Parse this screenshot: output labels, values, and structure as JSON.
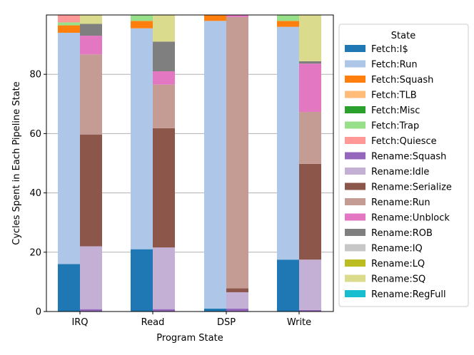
{
  "chart_data": {
    "type": "bar",
    "stacked": true,
    "grouping": "two stacked bars per category (Fetch stack left, Rename stack right)",
    "title": "",
    "xlabel": "Program State",
    "ylabel": "Cycles Spent in Each Pipeline State",
    "categories": [
      "IRQ",
      "Read",
      "DSP",
      "Write"
    ],
    "ylim": [
      0,
      100
    ],
    "yticks": [
      0,
      20,
      40,
      60,
      80
    ],
    "grid": "horizontal",
    "legend": {
      "title": "State",
      "placement": "right"
    },
    "series": [
      {
        "name": "Fetch:I$",
        "color": "#1f77b4",
        "group": "fetch",
        "values": [
          16.0,
          21.0,
          1.0,
          17.5
        ]
      },
      {
        "name": "Fetch:Run",
        "color": "#aec7e8",
        "group": "fetch",
        "values": [
          78.0,
          74.5,
          97.0,
          78.5
        ]
      },
      {
        "name": "Fetch:Squash",
        "color": "#ff7f0e",
        "group": "fetch",
        "values": [
          2.5,
          2.5,
          2.0,
          2.0
        ]
      },
      {
        "name": "Fetch:TLB",
        "color": "#ffbb78",
        "group": "fetch",
        "values": [
          0.0,
          0.0,
          0.0,
          0.0
        ]
      },
      {
        "name": "Fetch:Misc",
        "color": "#2ca02c",
        "group": "fetch",
        "values": [
          0.0,
          0.0,
          0.0,
          0.0
        ]
      },
      {
        "name": "Fetch:Trap",
        "color": "#98df8a",
        "group": "fetch",
        "values": [
          1.0,
          2.0,
          0.0,
          2.0
        ]
      },
      {
        "name": "Fetch:Quiesce",
        "color": "#ff9896",
        "group": "fetch",
        "values": [
          2.5,
          0.0,
          0.0,
          0.0
        ]
      },
      {
        "name": "Rename:Squash",
        "color": "#9467bd",
        "group": "rename",
        "values": [
          0.8,
          0.8,
          1.0,
          0.5
        ]
      },
      {
        "name": "Rename:Idle",
        "color": "#c5b0d5",
        "group": "rename",
        "values": [
          21.2,
          20.8,
          5.5,
          17.0
        ]
      },
      {
        "name": "Rename:Serialize",
        "color": "#8c564b",
        "group": "rename",
        "values": [
          37.7,
          40.2,
          1.3,
          32.3
        ]
      },
      {
        "name": "Rename:Run",
        "color": "#c49c94",
        "group": "rename",
        "values": [
          27.0,
          14.7,
          91.5,
          17.5
        ]
      },
      {
        "name": "Rename:Unblock",
        "color": "#e377c2",
        "group": "rename",
        "values": [
          6.3,
          4.5,
          0.7,
          16.3
        ]
      },
      {
        "name": "Rename:ROB",
        "color": "#7f7f7f",
        "group": "rename",
        "values": [
          4.0,
          10.0,
          0.0,
          0.8
        ]
      },
      {
        "name": "Rename:IQ",
        "color": "#c7c7c7",
        "group": "rename",
        "values": [
          0.0,
          0.0,
          0.0,
          0.0
        ]
      },
      {
        "name": "Rename:LQ",
        "color": "#bcbd22",
        "group": "rename",
        "values": [
          0.0,
          0.0,
          0.0,
          0.0
        ]
      },
      {
        "name": "Rename:SQ",
        "color": "#dbdb8d",
        "group": "rename",
        "values": [
          3.0,
          9.0,
          0.0,
          15.6
        ]
      },
      {
        "name": "Rename:RegFull",
        "color": "#17becf",
        "group": "rename",
        "values": [
          0.0,
          0.0,
          0.0,
          0.0
        ]
      }
    ]
  }
}
